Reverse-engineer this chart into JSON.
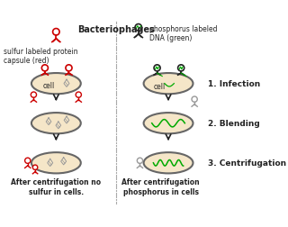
{
  "bg_color": "#ffffff",
  "cell_fill": "#f5e6c8",
  "cell_edge": "#666666",
  "red_color": "#cc0000",
  "green_color": "#00aa00",
  "dark_color": "#222222",
  "gray_color": "#999999",
  "title": "Bacteriophages",
  "label_sulfur": "sulfur labeled protein\ncapsule (red)",
  "label_phosphorus": "phosphorus labeled\nDNA (green)",
  "label1": "1. Infection",
  "label2": "2. Blending",
  "label3": "3. Centrifugation",
  "caption_left": "After centrifugation no\nsulfur in cells.",
  "caption_right": "After centrifugation\nphosphorus in cells"
}
